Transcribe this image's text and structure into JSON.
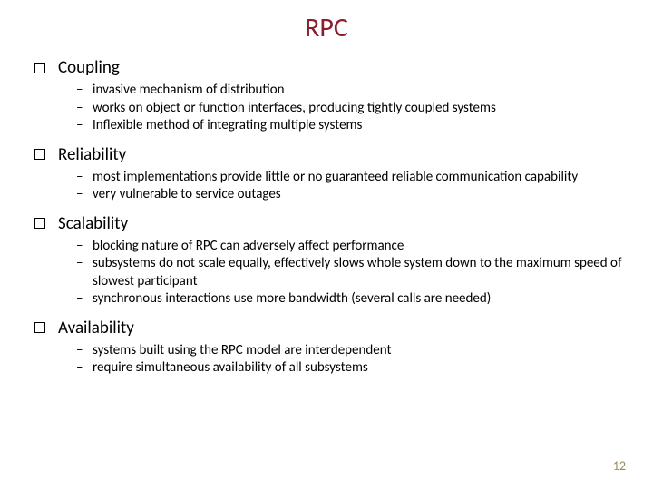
{
  "title": "RPC",
  "title_color": "#8b1e2c",
  "page_number": "12",
  "page_number_color": "#9b8a5c",
  "sections": [
    {
      "heading": "Coupling",
      "items": [
        "invasive mechanism of distribution",
        "works on object or function interfaces, producing tightly coupled systems",
        "Inflexible method of integrating multiple systems"
      ]
    },
    {
      "heading": "Reliability",
      "items": [
        "most implementations provide little or no guaranteed reliable communication capability",
        "very vulnerable to service outages"
      ]
    },
    {
      "heading": "Scalability",
      "items": [
        "blocking nature of RPC can adversely affect performance",
        "subsystems do not scale equally, effectively slows whole system down to the maximum speed of slowest participant",
        "synchronous interactions use more bandwidth (several calls are needed)"
      ]
    },
    {
      "heading": "Availability",
      "items": [
        "systems built using the RPC model are interdependent",
        "require simultaneous availability of all subsystems"
      ]
    }
  ]
}
